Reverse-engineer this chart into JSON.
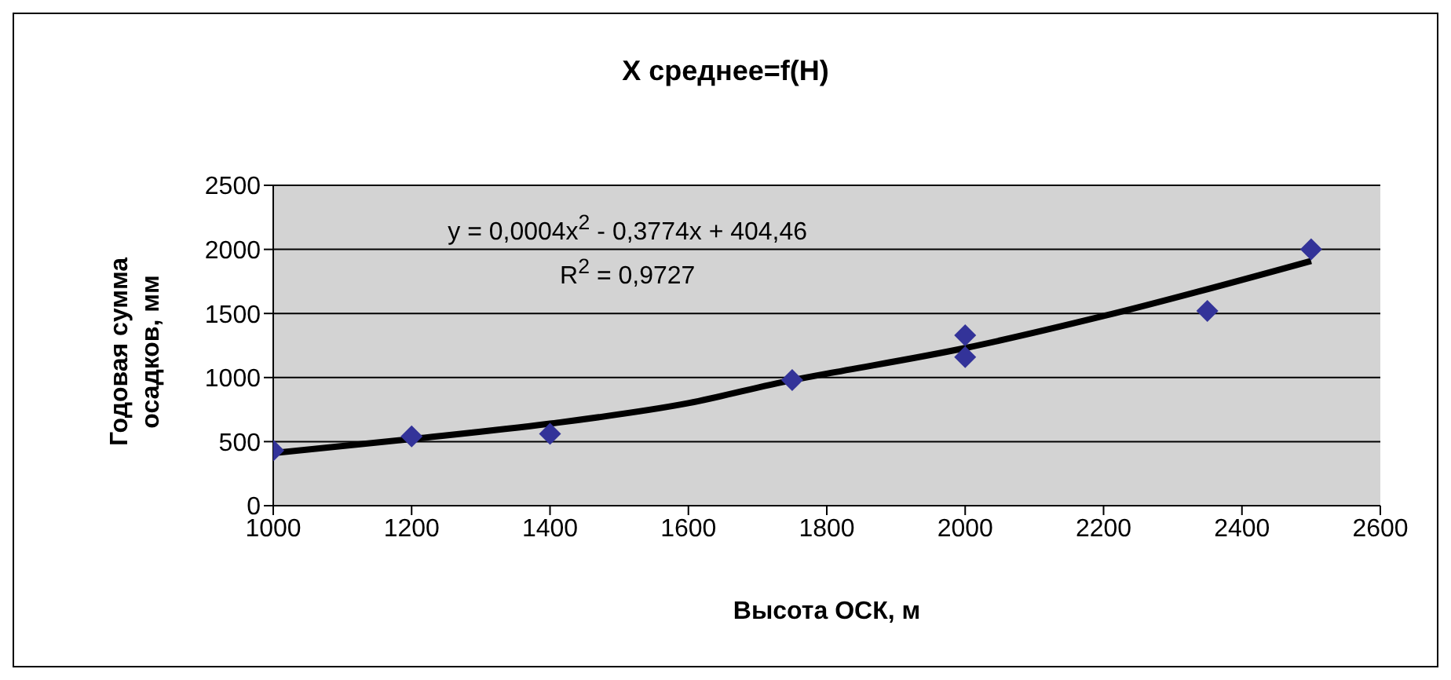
{
  "chart_data": {
    "type": "scatter",
    "title": "X среднее=f(H)",
    "xlabel": "Высота ОСК, м",
    "ylabel": "Годовая сумма осадков, мм",
    "annotations": [
      "y = 0,0004x$^{2}$ - 0,3774x + 404,46",
      "R$^{2}$ = 0,9727"
    ],
    "series": [
      {
        "color": "#333399",
        "marker": "diamond",
        "x": [
          1000,
          1200,
          1400,
          1750,
          2000,
          2000,
          2350,
          2500
        ],
        "values": [
          430,
          540,
          560,
          980,
          1330,
          1160,
          1520,
          2000
        ]
      },
      {
        "type": "line",
        "color": "#000000",
        "marker": "none",
        "x": [
          1000,
          1200,
          1400,
          1600,
          1750,
          1800,
          2000,
          2200,
          2500
        ],
        "values": [
          410,
          520,
          640,
          800,
          980,
          1030,
          1230,
          1480,
          1910
        ]
      }
    ],
    "xlim": [
      1000,
      2600
    ],
    "xticks": [
      1000,
      1200,
      1400,
      1600,
      1800,
      2000,
      2200,
      2400,
      2600
    ],
    "ylim": [
      0,
      2500
    ],
    "yticks": [
      0,
      500,
      1000,
      1500,
      2000,
      2500
    ],
    "grid": "y"
  }
}
